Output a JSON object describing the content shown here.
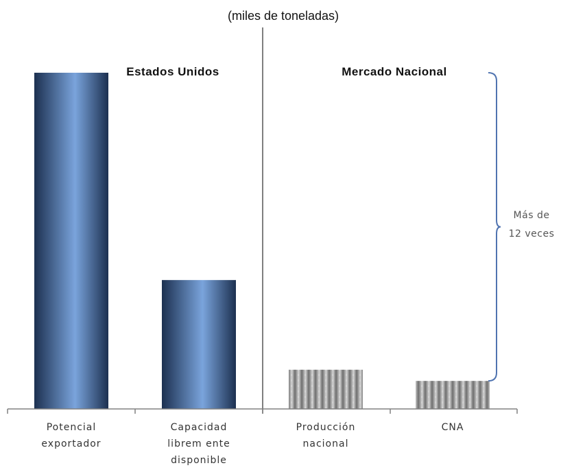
{
  "chart_data": {
    "type": "bar",
    "title": "",
    "subtitle": "(miles de toneladas)",
    "xlabel": "",
    "ylabel": "",
    "categories": [
      [
        "Potencial",
        "exportador"
      ],
      [
        "Capacidad",
        "librem ente",
        "disponible"
      ],
      [
        "Producción",
        "nacional"
      ],
      [
        "CNA"
      ]
    ],
    "values": [
      12.0,
      4.6,
      1.4,
      1.0
    ],
    "ylim": [
      0,
      12.5
    ],
    "grid": false,
    "groups": [
      {
        "label": "Estados Unidos",
        "categories": [
          0,
          1
        ],
        "color_style": "blue-gradient"
      },
      {
        "label": "Mercado Nacional",
        "categories": [
          2,
          3
        ],
        "color_style": "gray-texture"
      }
    ],
    "annotation": {
      "text": [
        "Más de",
        "12 veces"
      ],
      "spans_from_value": 1.0,
      "spans_to_value": 12.0
    }
  },
  "colors": {
    "bar_blue_dark": "#1c3050",
    "bar_blue_light": "#7aa4dc",
    "bar_gray_dark": "#6e6e6e",
    "bar_gray_light": "#cfcfcf",
    "brace": "#4f73b0",
    "axis": "#808080",
    "divider": "#555555"
  }
}
